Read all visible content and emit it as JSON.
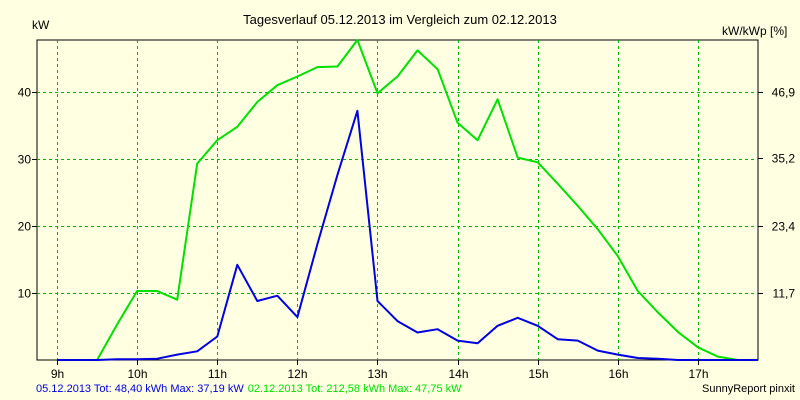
{
  "chart_data": {
    "type": "line",
    "title": "Tagesverlauf 05.12.2013 im Vergleich zum 02.12.2013",
    "ylabel_left": "kW",
    "ylabel_right": "kW/kWp [%]",
    "x_ticks": [
      "9h",
      "10h",
      "11h",
      "12h",
      "13h",
      "14h",
      "15h",
      "16h",
      "17h"
    ],
    "x_tick_values": [
      9,
      10,
      11,
      12,
      13,
      14,
      15,
      16,
      17
    ],
    "y_ticks_left": [
      "10",
      "20",
      "30",
      "40"
    ],
    "y_tick_values_left": [
      10,
      20,
      30,
      40
    ],
    "y_ticks_right": [
      "11,7",
      "23,4",
      "35,2",
      "46,9"
    ],
    "y_tick_values_right": [
      11.7,
      23.4,
      35.2,
      46.9
    ],
    "xlim": [
      8.75,
      17.75
    ],
    "ylim_left": [
      0,
      47.75
    ],
    "ylim_right": [
      0,
      55.9
    ],
    "grid": true,
    "series": [
      {
        "name": "05.12.2013",
        "color": "#0000e0",
        "x": [
          9.0,
          9.25,
          9.5,
          9.75,
          10.0,
          10.25,
          10.5,
          10.75,
          11.0,
          11.25,
          11.5,
          11.75,
          12.0,
          12.25,
          12.5,
          12.75,
          13.0,
          13.25,
          13.5,
          13.75,
          14.0,
          14.25,
          14.5,
          14.75,
          15.0,
          15.25,
          15.5,
          15.75,
          16.0,
          16.25,
          16.5,
          16.75,
          17.0,
          17.25,
          17.5,
          17.75
        ],
        "y": [
          0,
          0,
          0,
          0.1,
          0.1,
          0.2,
          0.8,
          1.3,
          3.5,
          14.2,
          8.8,
          9.6,
          6.4,
          17.3,
          27.6,
          37.19,
          8.8,
          5.8,
          4.1,
          4.6,
          2.9,
          2.5,
          5.1,
          6.3,
          5.1,
          3.1,
          2.9,
          1.4,
          0.8,
          0.3,
          0.2,
          0,
          0,
          0,
          0,
          0
        ]
      },
      {
        "name": "02.12.2013",
        "color": "#00e000",
        "x": [
          9.0,
          9.25,
          9.5,
          9.75,
          10.0,
          10.25,
          10.5,
          10.75,
          11.0,
          11.25,
          11.5,
          11.75,
          12.0,
          12.25,
          12.5,
          12.75,
          13.0,
          13.25,
          13.5,
          13.75,
          14.0,
          14.25,
          14.5,
          14.75,
          15.0,
          15.25,
          15.5,
          15.75,
          16.0,
          16.25,
          16.5,
          16.75,
          17.0,
          17.25,
          17.5,
          17.75
        ],
        "y": [
          0,
          0,
          0,
          5.3,
          10.3,
          10.3,
          9.0,
          29.3,
          32.8,
          34.8,
          38.5,
          41.0,
          42.3,
          43.7,
          43.8,
          47.75,
          39.8,
          42.3,
          46.2,
          43.4,
          35.4,
          32.8,
          38.9,
          30.2,
          29.5,
          26.3,
          23.0,
          19.5,
          15.5,
          10.3,
          7.1,
          4.2,
          1.9,
          0.5,
          0,
          0
        ]
      }
    ]
  },
  "footer": {
    "series1_text": "05.12.2013 Tot: 48,40 kWh Max: 37,19 kW",
    "series2_text": "02.12.2013 Tot: 212,58 kWh Max: 47,75 kW",
    "credit": "SunnyReport pinxit",
    "series1_color": "#0000e0",
    "series2_color": "#00e000"
  }
}
